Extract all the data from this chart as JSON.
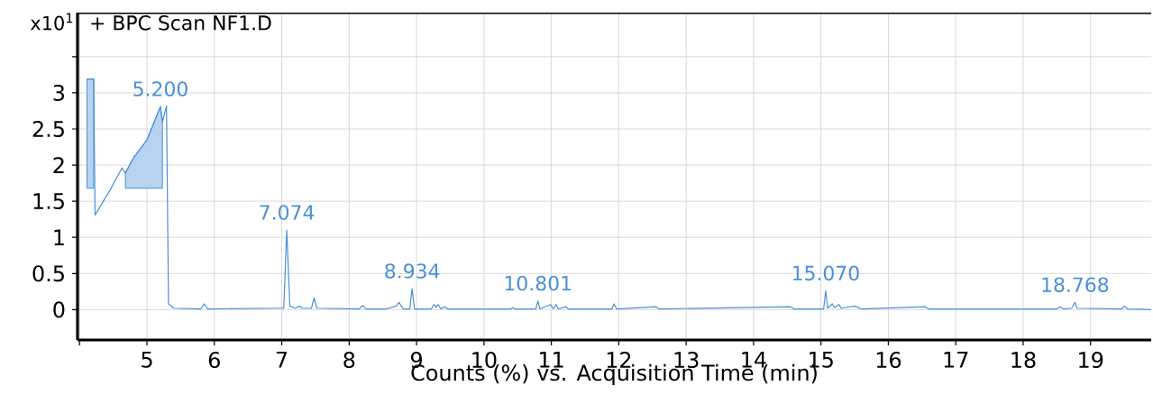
{
  "chart_data": {
    "type": "line",
    "title": "+ BPC Scan NF1.D",
    "xlabel": "Counts (%) vs. Acquisition Time (min)",
    "xlim": [
      3.97,
      19.9
    ],
    "ylim": [
      -0.42,
      4.11
    ],
    "xticks": [
      {
        "value": 4,
        "label": null
      },
      5,
      6,
      7,
      8,
      9,
      10,
      11,
      12,
      13,
      14,
      15,
      16,
      17,
      18,
      19
    ],
    "yticks": [
      0,
      0.5,
      1,
      1.5,
      2,
      2.5,
      3,
      {
        "value": 3.5,
        "label": null
      }
    ],
    "grid": true,
    "marker": "none",
    "line_style": "solid",
    "annotations": [
      "x10$^{1}$",
      {
        "text": "5.200",
        "x": 5.2,
        "y": 2.81
      },
      {
        "text": "7.074",
        "x": 7.074,
        "y": 1.1
      },
      {
        "text": "8.934",
        "x": 8.934,
        "y": 0.29
      },
      {
        "text": "10.801",
        "x": 10.801,
        "y": 0.12
      },
      {
        "text": "15.070",
        "x": 15.07,
        "y": 0.26
      },
      {
        "text": "18.768",
        "x": 18.768,
        "y": 0.1
      }
    ],
    "series": [
      {
        "color": "#4a90d9",
        "x": [
          4.11,
          4.21
        ],
        "values": [
          null,
          null
        ],
        "lower": [
          1.68,
          1.68
        ],
        "upper": [
          3.19,
          3.19
        ]
      },
      {
        "color": "#4a90d9",
        "x": [
          4.68,
          4.8,
          5.0,
          5.2,
          5.23
        ],
        "values": [
          null,
          null,
          null,
          null,
          null
        ],
        "lower": [
          1.68,
          1.68,
          1.68,
          1.68,
          1.68
        ],
        "upper": [
          1.89,
          2.1,
          2.35,
          2.81,
          2.6
        ]
      },
      {
        "type": "line",
        "color": "#4a90d9",
        "x": [
          4.11,
          4.21,
          4.23,
          4.45,
          4.63,
          4.68,
          4.8,
          5.0,
          5.2,
          5.23,
          5.29,
          5.32,
          5.4,
          5.8,
          5.85,
          5.9,
          6.9,
          7.03,
          7.074,
          7.12,
          7.2,
          7.27,
          7.3,
          7.44,
          7.48,
          7.52,
          8.15,
          8.2,
          8.25,
          8.55,
          8.7,
          8.74,
          8.8,
          8.9,
          8.934,
          8.97,
          9.22,
          9.26,
          9.29,
          9.32,
          9.36,
          9.42,
          9.46,
          10.4,
          10.43,
          10.46,
          10.77,
          10.801,
          10.83,
          10.99,
          11.03,
          11.07,
          11.1,
          11.22,
          11.25,
          11.9,
          11.93,
          11.97,
          12.55,
          12.6,
          14.55,
          14.6,
          15.04,
          15.07,
          15.1,
          15.17,
          15.2,
          15.27,
          15.3,
          15.5,
          15.6,
          16.55,
          16.6,
          18.5,
          18.55,
          18.6,
          18.72,
          18.768,
          18.8,
          19.46,
          19.5,
          19.55,
          19.9
        ],
        "values": [
          3.19,
          3.19,
          1.31,
          1.65,
          1.96,
          1.89,
          2.1,
          2.35,
          2.81,
          2.6,
          2.82,
          0.08,
          0.02,
          0.01,
          0.08,
          0.01,
          0.02,
          0.02,
          1.1,
          0.05,
          0.02,
          0.05,
          0.02,
          0.02,
          0.16,
          0.02,
          0.01,
          0.06,
          0.01,
          0.01,
          0.05,
          0.1,
          0.01,
          0.01,
          0.29,
          0.01,
          0.01,
          0.07,
          0.03,
          0.07,
          0.01,
          0.04,
          0.01,
          0.01,
          0.03,
          0.01,
          0.01,
          0.12,
          0.01,
          0.07,
          0.01,
          0.07,
          0.01,
          0.04,
          0.01,
          0.01,
          0.08,
          0.01,
          0.04,
          0.01,
          0.04,
          0.01,
          0.01,
          0.26,
          0.02,
          0.08,
          0.03,
          0.07,
          0.02,
          0.05,
          0.01,
          0.04,
          0.01,
          0.01,
          0.04,
          0.01,
          0.02,
          0.1,
          0.02,
          0.01,
          0.05,
          0.01,
          0.0
        ]
      }
    ]
  }
}
